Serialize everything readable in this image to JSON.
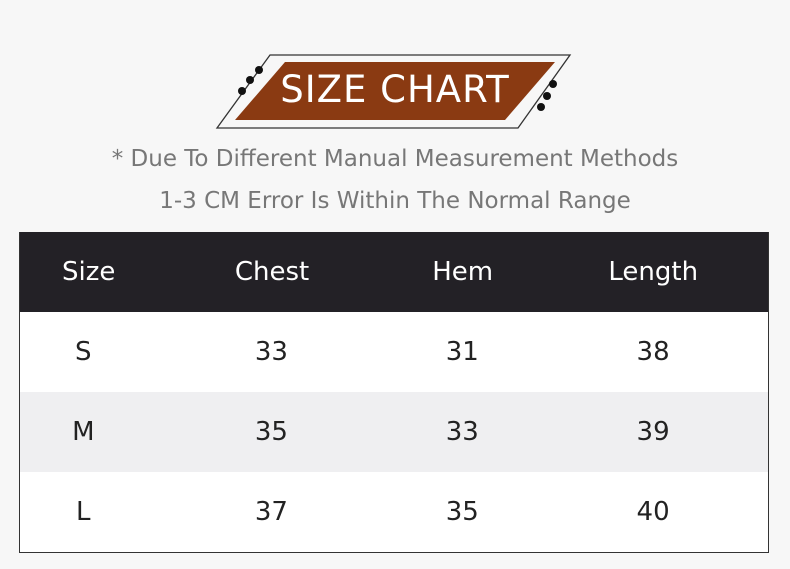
{
  "title": "SIZE CHART",
  "notes": [
    "* Due To Different Manual Measurement Methods",
    "1-3 CM Error Is Within The Normal Range"
  ],
  "colors": {
    "banner": "#8a3a12",
    "header_bg": "#232126",
    "alt_row": "#efeff1"
  },
  "table": {
    "headers": [
      "Size",
      "Chest",
      "Hem",
      "Length"
    ],
    "rows": [
      [
        "S",
        "33",
        "31",
        "38"
      ],
      [
        "M",
        "35",
        "33",
        "39"
      ],
      [
        "L",
        "37",
        "35",
        "40"
      ]
    ]
  }
}
